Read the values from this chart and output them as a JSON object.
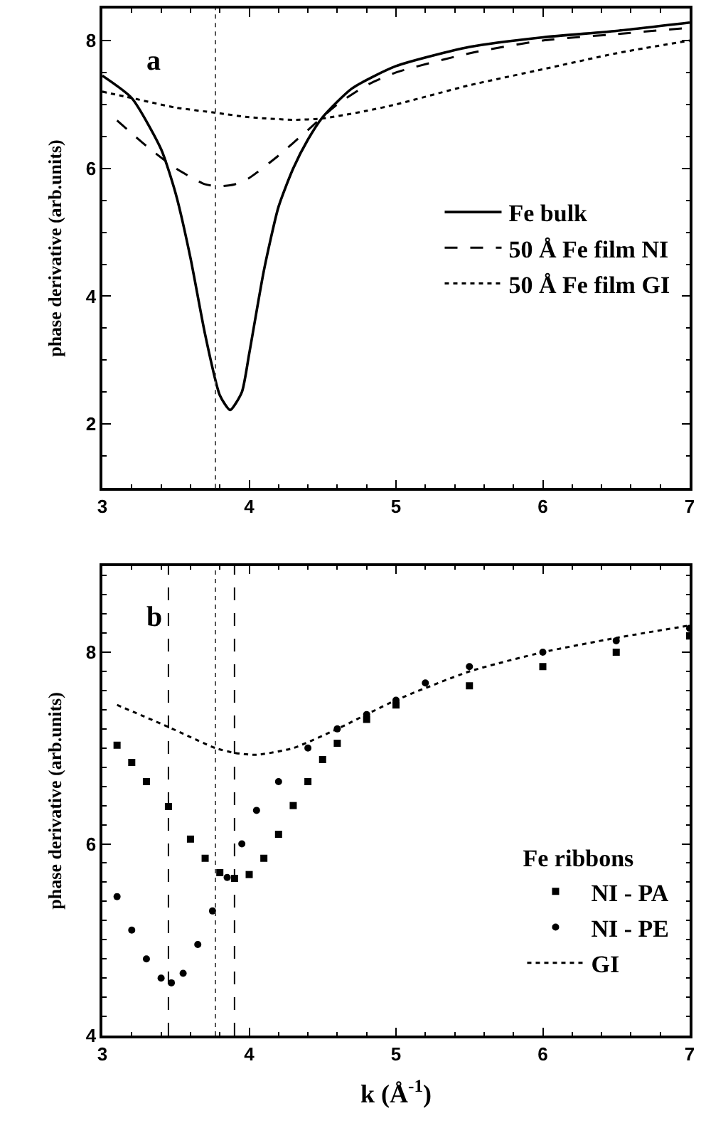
{
  "chart_data": [
    {
      "type": "line",
      "ylabel": "phase derivative (arb.units)",
      "annotations": [
        "a"
      ],
      "xlim": [
        3,
        7
      ],
      "xticks": [
        3,
        4,
        5,
        6,
        7
      ],
      "ylim": [
        1,
        8.5
      ],
      "yticks": [
        2,
        4,
        6,
        8
      ],
      "legend": "right",
      "ref_lines": [
        {
          "axis": "x",
          "value": 3.77,
          "line_style": "dotted",
          "color": "#555555"
        }
      ],
      "series": [
        {
          "name": "Fe bulk",
          "color": "#000000",
          "line_style": "solid",
          "x": [
            3.0,
            3.2,
            3.4,
            3.5,
            3.6,
            3.7,
            3.8,
            3.87,
            3.95,
            4.0,
            4.1,
            4.2,
            4.3,
            4.4,
            4.5,
            4.7,
            5.0,
            5.5,
            6.0,
            6.5,
            7.0
          ],
          "values": [
            7.45,
            7.1,
            6.3,
            5.6,
            4.6,
            3.4,
            2.45,
            2.22,
            2.5,
            3.1,
            4.4,
            5.4,
            6.0,
            6.45,
            6.8,
            7.25,
            7.6,
            7.9,
            8.05,
            8.15,
            8.28
          ]
        },
        {
          "name": "50 Å Fe film NI",
          "color": "#000000",
          "line_style": "dashed",
          "x": [
            3.1,
            3.3,
            3.5,
            3.7,
            3.8,
            3.9,
            4.0,
            4.2,
            4.4,
            4.6,
            4.8,
            5.0,
            5.5,
            6.0,
            6.5,
            7.0
          ],
          "values": [
            6.75,
            6.35,
            6.0,
            5.75,
            5.72,
            5.75,
            5.85,
            6.2,
            6.6,
            7.0,
            7.3,
            7.5,
            7.8,
            8.0,
            8.1,
            8.2
          ]
        },
        {
          "name": "50 Å Fe film GI",
          "color": "#000000",
          "line_style": "dotted",
          "x": [
            3.0,
            3.2,
            3.5,
            3.77,
            4.0,
            4.3,
            4.5,
            4.8,
            5.0,
            5.5,
            6.0,
            6.5,
            7.0
          ],
          "values": [
            7.2,
            7.1,
            6.95,
            6.87,
            6.8,
            6.76,
            6.78,
            6.9,
            7.0,
            7.3,
            7.55,
            7.8,
            8.0
          ]
        }
      ]
    },
    {
      "type": "scatter",
      "xlabel": "k (Å$^{-1}$)",
      "ylabel": "phase derivative (arb.units)",
      "annotations": [
        "b"
      ],
      "legend_title": "Fe ribbons",
      "xlim": [
        3,
        7
      ],
      "xticks": [
        3,
        4,
        5,
        6,
        7
      ],
      "ylim": [
        4,
        8.9
      ],
      "yticks": [
        4,
        6,
        8
      ],
      "legend": "bottom right",
      "ref_lines": [
        {
          "axis": "x",
          "value": 3.45,
          "line_style": "dashed",
          "color": "#000000"
        },
        {
          "axis": "x",
          "value": 3.77,
          "line_style": "dotted",
          "color": "#555555"
        },
        {
          "axis": "x",
          "value": 3.9,
          "line_style": "dashed",
          "color": "#000000"
        }
      ],
      "series": [
        {
          "name": "NI - PA",
          "color": "#000000",
          "marker": "square",
          "x": [
            3.1,
            3.2,
            3.3,
            3.45,
            3.6,
            3.7,
            3.8,
            3.9,
            4.0,
            4.1,
            4.2,
            4.3,
            4.4,
            4.5,
            4.6,
            4.8,
            5.0,
            5.5,
            6.0,
            6.5,
            7.0
          ],
          "values": [
            7.03,
            6.85,
            6.65,
            6.39,
            6.05,
            5.85,
            5.7,
            5.64,
            5.68,
            5.85,
            6.1,
            6.4,
            6.65,
            6.88,
            7.05,
            7.3,
            7.45,
            7.65,
            7.85,
            8.0,
            8.17
          ]
        },
        {
          "name": "NI - PE",
          "color": "#000000",
          "marker": "circle",
          "x": [
            3.1,
            3.2,
            3.3,
            3.4,
            3.47,
            3.55,
            3.65,
            3.75,
            3.85,
            3.95,
            4.05,
            4.2,
            4.4,
            4.6,
            4.8,
            5.0,
            5.2,
            5.5,
            6.0,
            6.5,
            7.0
          ],
          "values": [
            5.45,
            5.1,
            4.8,
            4.6,
            4.55,
            4.65,
            4.95,
            5.3,
            5.65,
            6.0,
            6.35,
            6.65,
            7.0,
            7.2,
            7.35,
            7.5,
            7.68,
            7.85,
            8.0,
            8.12,
            8.25
          ]
        },
        {
          "name": "GI",
          "color": "#000000",
          "type": "line",
          "line_style": "dotted",
          "x": [
            3.1,
            3.45,
            3.77,
            3.9,
            4.05,
            4.3,
            4.6,
            5.0,
            5.5,
            6.0,
            6.5,
            7.0
          ],
          "values": [
            7.45,
            7.22,
            7.0,
            6.95,
            6.93,
            7.0,
            7.2,
            7.5,
            7.8,
            8.0,
            8.15,
            8.28
          ]
        }
      ]
    }
  ]
}
